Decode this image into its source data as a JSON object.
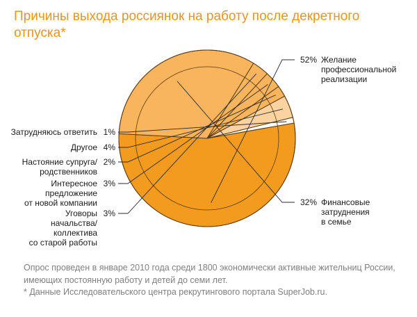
{
  "title": "Причины выхода россиянок на работу после декретного отпуска*",
  "footnote_survey": "Опрос проведен в январе 2010 года среди 1800 экономически активные жительниц России, имеющих постоянную работу и детей до семи лет.",
  "footnote_source": "* Данные Исследовательского центра рекрутингового портала SuperJob.ru.",
  "colors": {
    "title": "#e8951e",
    "slice_main": "#f39b1e",
    "slice_light": "#f8b55d",
    "slice_pale": "#fbd3a0",
    "outline": "#5a3a10",
    "label": "#1a1a1a",
    "footnote": "#7f7f7f"
  },
  "chart_data": {
    "type": "pie",
    "title": "Причины выхода россиянок на работу после декретного отпуска*",
    "slices": [
      {
        "label": "Желание профессиональной реализации",
        "lines": [
          "Желание",
          "профессиональной",
          "реализации"
        ],
        "pct_label": "52%",
        "value": 52
      },
      {
        "label": "Финансовые затруднения в семье",
        "lines": [
          "Финансовые",
          "затруднения",
          "в семье"
        ],
        "pct_label": "32%",
        "value": 32
      },
      {
        "label": "Уговоры начальства/ коллектива со старой работы",
        "lines": [
          "Уговоры",
          "начальства/",
          "коллектива",
          "со старой работы"
        ],
        "pct_label": "3%",
        "value": 3
      },
      {
        "label": "Интересное предложение от новой компании",
        "lines": [
          "Интересное",
          "предложение",
          "от новой компании"
        ],
        "pct_label": "3%",
        "value": 3
      },
      {
        "label": "Настояние супруга/ родственников",
        "lines": [
          "Настояние супруга/",
          "родственников"
        ],
        "pct_label": "2%",
        "value": 2
      },
      {
        "label": "Другое",
        "lines": [
          "Другое"
        ],
        "pct_label": "4%",
        "value": 4
      },
      {
        "label": "Затрудняюсь ответить",
        "lines": [
          "Затрудняюсь ответить"
        ],
        "pct_label": "1%",
        "value": 1
      }
    ]
  }
}
